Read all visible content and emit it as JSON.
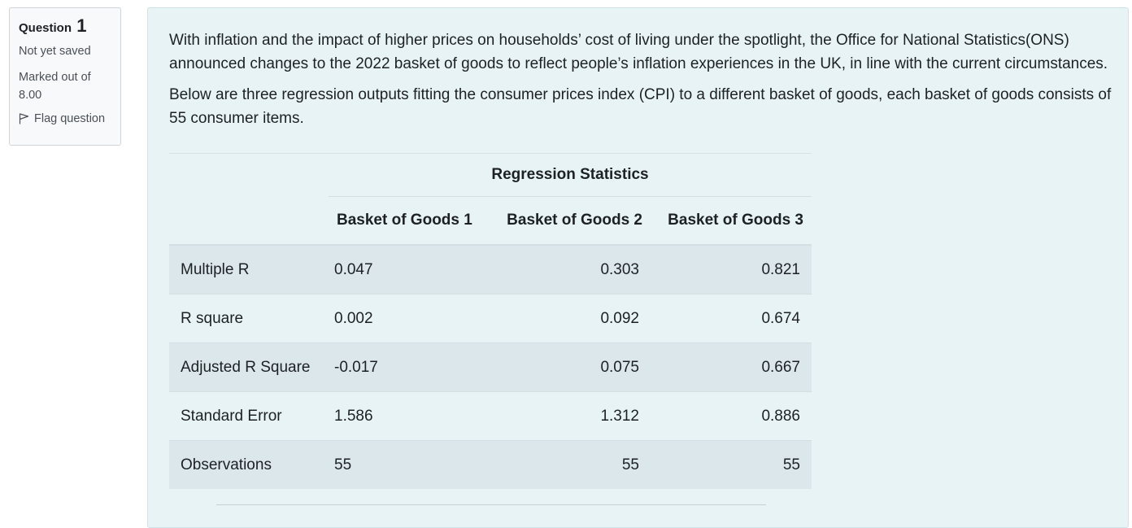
{
  "info": {
    "question_label": "Question",
    "question_number": "1",
    "state": "Not yet saved",
    "grade_line1": "Marked out of",
    "grade_line2": "8.00",
    "flag_label": "Flag question"
  },
  "question": {
    "paragraph1": "With inflation and the impact of higher prices on households’ cost of living under the spotlight, the Office for National Statistics(ONS) announced changes to the 2022 basket of goods to reflect people’s inflation experiences in the UK, in line with the current circumstances.",
    "paragraph2": "Below are three regression outputs fitting the consumer prices index (CPI) to a different basket of goods, each basket of goods consists of 55 consumer items."
  },
  "table": {
    "caption": "Regression Statistics",
    "columns": [
      "",
      "Basket of Goods 1",
      "Basket of Goods 2",
      "Basket of Goods 3"
    ],
    "rows": [
      [
        "Multiple R",
        "0.047",
        "0.303",
        "0.821"
      ],
      [
        "R square",
        "0.002",
        "0.092",
        "0.674"
      ],
      [
        "Adjusted R Square",
        "-0.017",
        "0.075",
        "0.667"
      ],
      [
        "Standard Error",
        "1.586",
        "1.312",
        "0.886"
      ],
      [
        "Observations",
        "55",
        "55",
        "55"
      ]
    ]
  },
  "colors": {
    "content_bg": "#e7f3f5",
    "stripe_bg": "#dbe7ea",
    "info_bg": "#f8f9fa"
  }
}
